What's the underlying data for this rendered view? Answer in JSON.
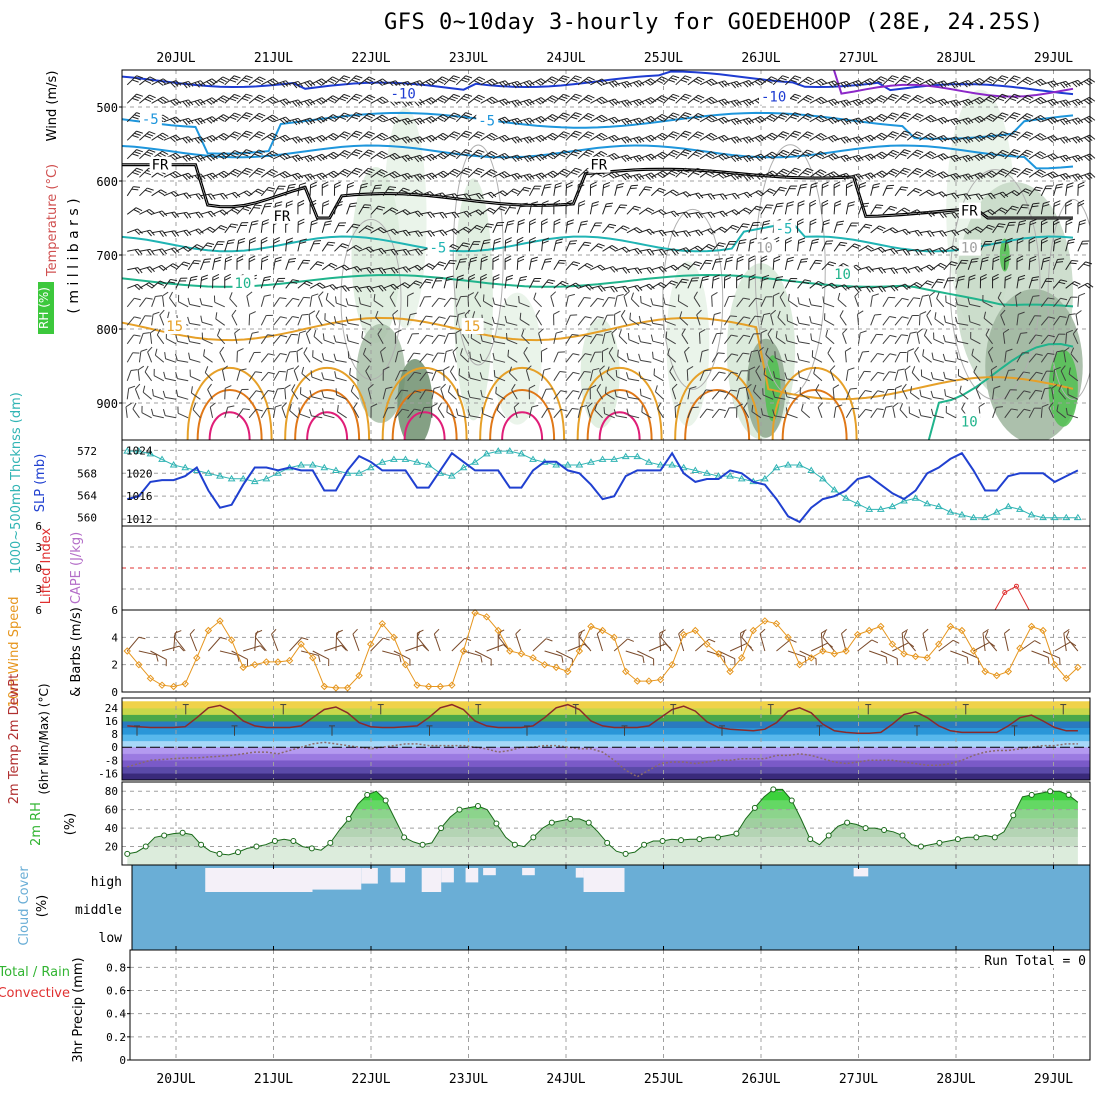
{
  "title": "GFS 0~10day 3-hourly for GOEDEHOOP (28E, 24.25S)",
  "chart_data": {
    "type": "meteogram",
    "dates": [
      "20JUL",
      "21JUL",
      "22JUL",
      "23JUL",
      "24JUL",
      "25JUL",
      "26JUL",
      "27JUL",
      "28JUL",
      "29JUL"
    ],
    "colors": {
      "cool": "#1e3cd2",
      "mid": "#1e96dc",
      "cyan": "#20b4b4",
      "teal": "#20b48c",
      "orange": "#e6a028",
      "darkorange": "#e07818",
      "pink": "#e01e78",
      "purple": "#8c28c8",
      "thick": "#30b4b4",
      "slp": "#2040d0",
      "wind": "#e6961e",
      "rh": "#32b432",
      "cloud": "#6aaed6",
      "lifted": "#e03030",
      "cape": "#b46ec8"
    },
    "panels": [
      {
        "id": "upper",
        "ylabel": "(millibars)",
        "ylabel_spaced": "( m i l l i b a r s )",
        "side_labels": [
          "Wind (m/s)",
          "Temperature (°C)",
          "RH (%)"
        ],
        "yticks": [
          500,
          600,
          700,
          800,
          900
        ],
        "ylim": [
          450,
          950
        ],
        "contour_labels": [
          {
            "text": "-10",
            "day": 2.2,
            "p": 482,
            "color": "cool"
          },
          {
            "text": "-10",
            "day": 6.0,
            "p": 486,
            "color": "cool"
          },
          {
            "text": "-5",
            "day": -0.35,
            "p": 516,
            "color": "mid"
          },
          {
            "text": "-5",
            "day": 3.1,
            "p": 518,
            "color": "mid"
          },
          {
            "text": "FR",
            "day": -0.25,
            "p": 578,
            "color": "black"
          },
          {
            "text": "FR",
            "day": 4.25,
            "p": 578,
            "color": "black"
          },
          {
            "text": "FR",
            "day": 1.0,
            "p": 647,
            "color": "black"
          },
          {
            "text": "FR",
            "day": 8.05,
            "p": 640,
            "color": "black"
          },
          {
            "text": "-5",
            "day": 2.6,
            "p": 690,
            "color": "cyan"
          },
          {
            "text": "-5",
            "day": 6.15,
            "p": 664,
            "color": "cyan"
          },
          {
            "text": "10",
            "day": 0.6,
            "p": 738,
            "color": "teal"
          },
          {
            "text": "10",
            "day": 6.75,
            "p": 726,
            "color": "teal"
          },
          {
            "text": "10",
            "day": 8.05,
            "p": 925,
            "color": "teal"
          },
          {
            "text": "15",
            "day": -0.1,
            "p": 796,
            "color": "orange"
          },
          {
            "text": "15",
            "day": 2.95,
            "p": 796,
            "color": "orange"
          },
          {
            "text": "10",
            "day": 5.95,
            "p": 690,
            "color": "grey"
          },
          {
            "text": "10",
            "day": 8.05,
            "p": 690,
            "color": "grey"
          }
        ]
      },
      {
        "id": "slp",
        "left_label": "1000~500mb Thcknss (dm)",
        "right_label": "SLP (mb)",
        "thick_ticks": [
          560,
          564,
          568,
          572
        ],
        "slp_ticks": [
          1012,
          1016,
          1020,
          1024
        ],
        "thick_lim": [
          558.5,
          574
        ],
        "slp_lim": [
          1010.8,
          1025.8
        ],
        "slp_values": [
          1015.5,
          1016,
          1018.5,
          1018.8,
          1018.8,
          1019.5,
          1021,
          1017,
          1014,
          1014.5,
          1018,
          1021,
          1021,
          1020.5,
          1021,
          1020.5,
          1020.5,
          1017,
          1017,
          1020.5,
          1023,
          1022,
          1020.5,
          1020.5,
          1020.5,
          1017.5,
          1017.5,
          1020.5,
          1023.5,
          1022,
          1020.5,
          1020.5,
          1020.5,
          1017.5,
          1017.5,
          1020.5,
          1022,
          1022,
          1020.5,
          1020,
          1018,
          1015.5,
          1016,
          1019.5,
          1020.5,
          1020.5,
          1020.5,
          1023.5,
          1020,
          1018.5,
          1019,
          1019,
          1020.5,
          1020,
          1018.5,
          1018,
          1015.5,
          1012.5,
          1011.5,
          1014,
          1015.5,
          1016,
          1017,
          1019,
          1019.5,
          1018,
          1016.5,
          1015.5,
          1017,
          1020,
          1021,
          1022.5,
          1023.5,
          1020.5,
          1017,
          1017,
          1019.5,
          1020,
          1020,
          1020,
          1018.5,
          1019.5,
          1020.5
        ],
        "thick_values": [
          572,
          572,
          571.5,
          570.5,
          569.5,
          569,
          568.5,
          568,
          567.5,
          567,
          567,
          566.5,
          567,
          568,
          569,
          569.5,
          569.5,
          569,
          568.5,
          568,
          568,
          569,
          570,
          570.5,
          570.5,
          570,
          569.5,
          568,
          567.5,
          569,
          570,
          571.5,
          572,
          572,
          571.5,
          570.5,
          570,
          569.5,
          569.5,
          569.5,
          570,
          570.5,
          570.5,
          571,
          571,
          570,
          569.5,
          569.5,
          569,
          568.5,
          568,
          567.5,
          567.5,
          567,
          566.5,
          567,
          569,
          569.5,
          569.5,
          568.5,
          567,
          565,
          563.5,
          562.5,
          561.5,
          561.5,
          562,
          563,
          563.5,
          562.5,
          562,
          561,
          560.5,
          560,
          560,
          561,
          562,
          561.5,
          560.5,
          560,
          560,
          560,
          560
        ]
      },
      {
        "id": "lifted",
        "left_label": "Lifted Index",
        "right_label": "CAPE (J/kg)",
        "yticks": [
          -6,
          -3,
          0,
          3,
          6
        ],
        "yticklabels": [
          "6",
          "3",
          "0",
          "3",
          "6"
        ],
        "spike": [
          {
            "day": 8.4,
            "v": 6
          },
          {
            "day": 8.5,
            "v": 3.5
          },
          {
            "day": 8.62,
            "v": 2.6
          },
          {
            "day": 8.75,
            "v": 6
          }
        ]
      },
      {
        "id": "wind",
        "left_label": "10m Wind Speed",
        "right_label": "& Barbs (m/s)",
        "yticks": [
          0,
          2,
          4,
          6
        ],
        "ylim": [
          0,
          6
        ],
        "values": [
          3,
          2,
          1,
          0.5,
          0.4,
          0.6,
          2.5,
          4.5,
          5.2,
          3.8,
          1.8,
          2,
          2.2,
          2.2,
          2.3,
          3.5,
          2.5,
          0.4,
          0.3,
          0.3,
          1.2,
          3.5,
          5,
          4,
          2,
          0.5,
          0.4,
          0.4,
          0.5,
          3,
          5.8,
          5.5,
          4.5,
          3,
          2.8,
          2.5,
          2,
          1.8,
          1.5,
          3,
          4.8,
          4.5,
          4,
          1.5,
          0.8,
          0.8,
          0.9,
          2,
          4.2,
          4.5,
          3.5,
          2.8,
          1.5,
          2.5,
          4.5,
          5.2,
          5,
          4,
          2,
          2.5,
          3,
          2.8,
          3,
          4.2,
          4.5,
          4.8,
          3.5,
          2.8,
          2.6,
          2.5,
          3.5,
          4.8,
          4.5,
          3,
          1.5,
          1.2,
          1.5,
          3.2,
          4.8,
          4.5,
          2,
          1,
          1.8
        ]
      },
      {
        "id": "temp",
        "left_label": "2m Temp 2m DewPt",
        "right_label": "(6hr Min/Max) (°C)",
        "yticks": [
          -16,
          -8,
          0,
          8,
          16,
          24
        ],
        "ylim": [
          -20,
          30
        ],
        "temp": [
          13,
          12.5,
          12,
          12,
          12,
          12.5,
          18,
          24,
          25.5,
          22,
          16,
          13,
          12,
          12,
          12,
          13,
          18,
          23,
          24.5,
          21,
          15,
          12.5,
          12,
          12,
          12.5,
          13,
          18,
          24,
          26,
          23,
          16,
          13,
          12,
          12,
          12,
          13,
          18,
          24,
          26,
          23,
          16,
          13,
          12,
          12,
          12,
          13,
          18,
          23,
          25,
          22,
          15.5,
          12,
          11,
          10.5,
          10,
          11,
          15,
          22,
          24,
          21,
          14,
          10,
          9,
          8.5,
          8.5,
          9,
          14,
          20,
          21.5,
          18,
          13,
          10,
          9,
          9,
          9,
          9,
          13,
          18,
          19.5,
          16,
          12,
          10,
          10
        ],
        "dew": [
          -12,
          -10,
          -8,
          -7.5,
          -7,
          -6.5,
          -6.5,
          -6,
          -5.5,
          -5,
          -4,
          -3,
          -3,
          -4,
          -2,
          0,
          2,
          3,
          2,
          1,
          0,
          -1,
          0,
          1,
          2,
          2,
          1,
          1,
          1,
          1,
          0,
          -1,
          -3,
          -2,
          0,
          0,
          1,
          1,
          0,
          -1,
          -1,
          -3,
          -8,
          -14,
          -18,
          -14,
          -10,
          -9,
          -9,
          -10,
          -9,
          -8,
          -8,
          -7,
          -7,
          -7,
          -5,
          -5,
          -4,
          -5,
          -7,
          -9,
          -10,
          -9,
          -8,
          -8,
          -8,
          -9,
          -10,
          -11,
          -11,
          -10,
          -8,
          -5,
          -3,
          -2,
          -2,
          -1,
          0,
          1,
          1,
          2,
          2
        ]
      },
      {
        "id": "rh",
        "left_label": "2m RH",
        "right_label": "(%)",
        "yticks": [
          20,
          40,
          60,
          80
        ],
        "ylim": [
          0,
          90
        ],
        "values": [
          12,
          14,
          20,
          30,
          32,
          34,
          35,
          33,
          22,
          15,
          12,
          11,
          14,
          18,
          20,
          22,
          26,
          28,
          26,
          20,
          18,
          16,
          24,
          38,
          50,
          66,
          76,
          80,
          70,
          50,
          30,
          25,
          22,
          24,
          40,
          52,
          60,
          62,
          64,
          60,
          45,
          30,
          22,
          20,
          30,
          40,
          46,
          48,
          50,
          50,
          46,
          36,
          24,
          15,
          12,
          14,
          22,
          26,
          26,
          28,
          27,
          28,
          28,
          30,
          30,
          32,
          34,
          50,
          62,
          74,
          82,
          82,
          70,
          50,
          28,
          22,
          32,
          42,
          46,
          44,
          40,
          40,
          38,
          36,
          32,
          22,
          20,
          22,
          24,
          26,
          28,
          30,
          30,
          32,
          30,
          36,
          54,
          74,
          76,
          78,
          80,
          80,
          76,
          68
        ]
      },
      {
        "id": "cloud",
        "left_label": "Cloud Cover",
        "right_label": "(%)",
        "rows": [
          "high",
          "middle",
          "low"
        ],
        "high_blocks": [
          {
            "start": 0.3,
            "end": 1.4,
            "depth": 1.0
          },
          {
            "start": 1.05,
            "end": 1.25,
            "depth": 0.55
          },
          {
            "start": 1.25,
            "end": 1.9,
            "depth": 0.9
          },
          {
            "start": 1.9,
            "end": 2.07,
            "depth": 0.65
          },
          {
            "start": 2.2,
            "end": 2.35,
            "depth": 0.6
          },
          {
            "start": 2.52,
            "end": 2.72,
            "depth": 1.0
          },
          {
            "start": 2.72,
            "end": 2.85,
            "depth": 0.6
          },
          {
            "start": 2.97,
            "end": 3.1,
            "depth": 0.6
          },
          {
            "start": 3.15,
            "end": 3.28,
            "depth": 0.3
          },
          {
            "start": 3.55,
            "end": 3.68,
            "depth": 0.3
          },
          {
            "start": 4.1,
            "end": 4.18,
            "depth": 0.4
          },
          {
            "start": 4.18,
            "end": 4.6,
            "depth": 1.0
          },
          {
            "start": 6.95,
            "end": 7.1,
            "depth": 0.35
          }
        ]
      },
      {
        "id": "precip",
        "left_label": "3hr Precip (mm)",
        "left_label2": "Total / Rain",
        "left_label3": "Convective",
        "run_total": "Run Total = 0",
        "yticks": [
          0,
          0.2,
          0.4,
          0.6,
          0.8
        ],
        "ylim": [
          0,
          0.95
        ]
      }
    ]
  }
}
